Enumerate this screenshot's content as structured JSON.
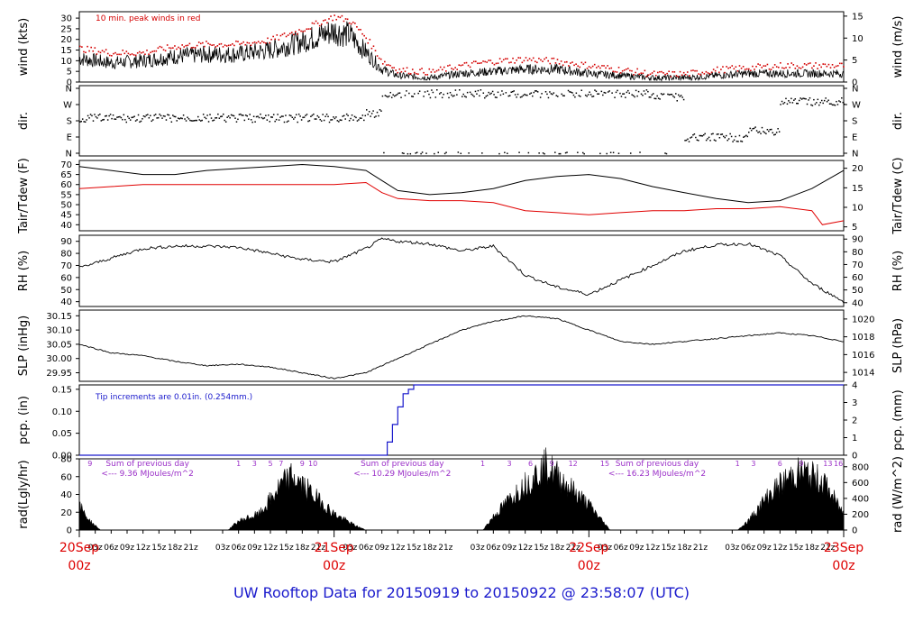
{
  "footer": {
    "title": "UW Rooftop Data for 20150919  to  20150922 @ 23:58:07  (UTC)"
  },
  "colors": {
    "peak": "#d40000",
    "dew": "#e00000",
    "pcp": "#1a1acc",
    "annot": "#9b30c8",
    "date": "#dd0000",
    "trace": "#000000",
    "title": "#1a1acc"
  },
  "chart_data": [
    {
      "panel": "wind",
      "type": "line",
      "ylabel_left": "wind (kts)",
      "ylabel_right": "wind (m/s)",
      "annotation": "10 min. peak winds in red",
      "yticks_left": [
        "0",
        "5",
        "10",
        "15",
        "20",
        "25",
        "30"
      ],
      "yticks_right": [
        "0",
        "5",
        "10",
        "15"
      ],
      "ylim": [
        0,
        33
      ],
      "series": [
        {
          "values": [
            [
              0,
              11
            ],
            [
              6,
              9
            ],
            [
              12,
              10
            ],
            [
              18,
              12
            ],
            [
              24,
              13
            ],
            [
              30,
              13
            ],
            [
              36,
              15
            ],
            [
              42,
              19
            ],
            [
              48,
              24
            ],
            [
              51,
              22
            ],
            [
              54,
              14
            ],
            [
              57,
              6
            ],
            [
              60,
              3
            ],
            [
              66,
              2
            ],
            [
              72,
              4
            ],
            [
              78,
              5
            ],
            [
              84,
              6
            ],
            [
              90,
              6
            ],
            [
              96,
              4
            ],
            [
              102,
              3
            ],
            [
              108,
              2
            ],
            [
              114,
              2
            ],
            [
              120,
              3
            ],
            [
              126,
              4
            ],
            [
              132,
              4
            ],
            [
              138,
              4
            ],
            [
              144,
              4
            ]
          ]
        },
        {
          "values": [
            [
              0,
              16
            ],
            [
              6,
              14
            ],
            [
              12,
              14
            ],
            [
              18,
              17
            ],
            [
              24,
              18
            ],
            [
              30,
              18
            ],
            [
              36,
              20
            ],
            [
              42,
              25
            ],
            [
              48,
              31
            ],
            [
              51,
              29
            ],
            [
              54,
              21
            ],
            [
              57,
              10
            ],
            [
              60,
              6
            ],
            [
              66,
              5
            ],
            [
              72,
              8
            ],
            [
              78,
              10
            ],
            [
              84,
              11
            ],
            [
              90,
              10
            ],
            [
              96,
              8
            ],
            [
              102,
              6
            ],
            [
              108,
              4
            ],
            [
              114,
              4
            ],
            [
              120,
              6
            ],
            [
              126,
              7
            ],
            [
              132,
              8
            ],
            [
              138,
              8
            ],
            [
              144,
              8
            ]
          ]
        }
      ]
    },
    {
      "panel": "dir",
      "type": "scatter",
      "ylabel_left": "dir.",
      "ylabel_right": "dir.",
      "yticks_left": [
        "N",
        "E",
        "S",
        "W",
        "N"
      ],
      "yticks_right": [
        "N",
        "E",
        "S",
        "W",
        "N"
      ],
      "series": [
        {
          "values": [
            [
              0,
              "S-SW"
            ],
            [
              54,
              "SW"
            ],
            [
              57,
              "N-NW"
            ],
            [
              108,
              "NW"
            ],
            [
              114,
              "E"
            ],
            [
              126,
              "E-SE"
            ],
            [
              132,
              "W-NW"
            ],
            [
              144,
              "W"
            ]
          ]
        }
      ]
    },
    {
      "panel": "temp",
      "type": "line",
      "ylabel_left": "Tair/Tdew (F)",
      "ylabel_right": "Tair/Tdew (C)",
      "yticks_left": [
        "40",
        "45",
        "50",
        "55",
        "60",
        "65",
        "70"
      ],
      "yticks_right": [
        "5",
        "10",
        "15",
        "20"
      ],
      "ylim": [
        37,
        72
      ],
      "series": [
        {
          "values": [
            [
              0,
              69
            ],
            [
              6,
              67
            ],
            [
              12,
              65
            ],
            [
              18,
              65
            ],
            [
              24,
              67
            ],
            [
              30,
              68
            ],
            [
              36,
              69
            ],
            [
              42,
              70
            ],
            [
              48,
              69
            ],
            [
              54,
              67
            ],
            [
              57,
              62
            ],
            [
              60,
              57
            ],
            [
              66,
              55
            ],
            [
              72,
              56
            ],
            [
              78,
              58
            ],
            [
              84,
              62
            ],
            [
              90,
              64
            ],
            [
              96,
              65
            ],
            [
              102,
              63
            ],
            [
              108,
              59
            ],
            [
              114,
              56
            ],
            [
              120,
              53
            ],
            [
              126,
              51
            ],
            [
              132,
              52
            ],
            [
              138,
              58
            ],
            [
              144,
              67
            ]
          ]
        },
        {
          "values": [
            [
              0,
              58
            ],
            [
              6,
              59
            ],
            [
              12,
              60
            ],
            [
              18,
              60
            ],
            [
              24,
              60
            ],
            [
              30,
              60
            ],
            [
              36,
              60
            ],
            [
              42,
              60
            ],
            [
              48,
              60
            ],
            [
              54,
              61
            ],
            [
              57,
              56
            ],
            [
              60,
              53
            ],
            [
              66,
              52
            ],
            [
              72,
              52
            ],
            [
              78,
              51
            ],
            [
              84,
              47
            ],
            [
              90,
              46
            ],
            [
              96,
              45
            ],
            [
              102,
              46
            ],
            [
              108,
              47
            ],
            [
              114,
              47
            ],
            [
              120,
              48
            ],
            [
              126,
              48
            ],
            [
              132,
              49
            ],
            [
              138,
              47
            ],
            [
              140,
              40
            ],
            [
              144,
              42
            ]
          ]
        }
      ]
    },
    {
      "panel": "rh",
      "type": "line",
      "ylabel_left": "RH (%)",
      "ylabel_right": "RH (%)",
      "yticks_left": [
        "40",
        "50",
        "60",
        "70",
        "80",
        "90"
      ],
      "yticks_right": [
        "40",
        "50",
        "60",
        "70",
        "80",
        "90"
      ],
      "ylim": [
        36,
        95
      ],
      "series": [
        {
          "values": [
            [
              0,
              68
            ],
            [
              6,
              76
            ],
            [
              12,
              84
            ],
            [
              18,
              86
            ],
            [
              24,
              86
            ],
            [
              30,
              85
            ],
            [
              36,
              80
            ],
            [
              42,
              75
            ],
            [
              48,
              73
            ],
            [
              54,
              84
            ],
            [
              57,
              92
            ],
            [
              60,
              90
            ],
            [
              66,
              88
            ],
            [
              72,
              82
            ],
            [
              78,
              86
            ],
            [
              84,
              62
            ],
            [
              90,
              52
            ],
            [
              96,
              46
            ],
            [
              102,
              58
            ],
            [
              108,
              70
            ],
            [
              114,
              82
            ],
            [
              120,
              87
            ],
            [
              126,
              88
            ],
            [
              132,
              78
            ],
            [
              138,
              55
            ],
            [
              144,
              40
            ]
          ]
        }
      ]
    },
    {
      "panel": "slp",
      "type": "line",
      "ylabel_left": "SLP (inHg)",
      "ylabel_right": "SLP (hPa)",
      "yticks_left": [
        "29.95",
        "30.00",
        "30.05",
        "30.10",
        "30.15"
      ],
      "yticks_right": [
        "1014",
        "1016",
        "1018",
        "1020"
      ],
      "ylim": [
        29.92,
        30.17
      ],
      "series": [
        {
          "values": [
            [
              0,
              30.05
            ],
            [
              6,
              30.02
            ],
            [
              12,
              30.01
            ],
            [
              18,
              29.99
            ],
            [
              24,
              29.975
            ],
            [
              30,
              29.98
            ],
            [
              36,
              29.97
            ],
            [
              42,
              29.95
            ],
            [
              48,
              29.93
            ],
            [
              54,
              29.95
            ],
            [
              60,
              30.0
            ],
            [
              66,
              30.05
            ],
            [
              72,
              30.1
            ],
            [
              78,
              30.13
            ],
            [
              84,
              30.15
            ],
            [
              90,
              30.14
            ],
            [
              96,
              30.1
            ],
            [
              102,
              30.06
            ],
            [
              108,
              30.05
            ],
            [
              114,
              30.06
            ],
            [
              120,
              30.07
            ],
            [
              126,
              30.08
            ],
            [
              132,
              30.09
            ],
            [
              138,
              30.08
            ],
            [
              144,
              30.06
            ]
          ]
        }
      ]
    },
    {
      "panel": "pcp",
      "type": "line",
      "ylabel_left": "pcp. (in)",
      "ylabel_right": "pcp. (mm)",
      "annotation": "Tip increments are 0.01in. (0.254mm.)",
      "yticks_left": [
        "0.00",
        "0.05",
        "0.10",
        "0.15"
      ],
      "yticks_right": [
        "0",
        "1",
        "2",
        "3",
        "4"
      ],
      "ylim": [
        0,
        0.16
      ],
      "series": [
        {
          "values": [
            [
              0,
              0
            ],
            [
              57,
              0
            ],
            [
              58,
              0.03
            ],
            [
              59,
              0.07
            ],
            [
              60,
              0.11
            ],
            [
              61,
              0.14
            ],
            [
              62,
              0.15
            ],
            [
              63,
              0.16
            ],
            [
              144,
              0.16
            ]
          ]
        }
      ]
    },
    {
      "panel": "rad",
      "type": "area",
      "ylabel_left": "rad(Lgly/hr)",
      "ylabel_right": "rad (W/m^2)",
      "yticks_left": [
        "0",
        "20",
        "40",
        "60",
        "80"
      ],
      "yticks_right": [
        "0",
        "200",
        "400",
        "600",
        "800"
      ],
      "ylim": [
        0,
        80
      ],
      "daylabels": [
        "Sum of previous day\n<--- 9.36 MJoules/m^2",
        "Sum of previous day\n<--- 10.29 MJoules/m^2",
        "Sum of previous day\n<--- 16.23 MJoules/m^2"
      ],
      "hourlabels": [
        "9",
        "1",
        "3",
        "5",
        "7",
        "9",
        "10",
        "1",
        "3",
        "6",
        "9",
        "12",
        "15",
        "1",
        "3",
        "6",
        "9",
        "13",
        "16"
      ],
      "xticks": [
        "03z",
        "06z",
        "09z",
        "12z",
        "15z",
        "18z",
        "21z",
        "03z",
        "06z",
        "09z",
        "12z",
        "15z",
        "18z",
        "21z",
        "03z",
        "06z",
        "09z",
        "12z",
        "15z",
        "18z",
        "21z"
      ],
      "dates": [
        {
          "date": "20Sep",
          "time": "00z"
        },
        {
          "date": "21Sep",
          "time": "00z"
        },
        {
          "date": "22Sep",
          "time": "00z"
        },
        {
          "date": "23Sep",
          "time": "00z"
        }
      ],
      "series": [
        {
          "values": [
            [
              0,
              27
            ],
            [
              2,
              10
            ],
            [
              4,
              0
            ],
            [
              28,
              0
            ],
            [
              30,
              10
            ],
            [
              34,
              18
            ],
            [
              38,
              50
            ],
            [
              40,
              60
            ],
            [
              44,
              40
            ],
            [
              48,
              18
            ],
            [
              52,
              5
            ],
            [
              54,
              0
            ],
            [
              76,
              0
            ],
            [
              78,
              15
            ],
            [
              82,
              40
            ],
            [
              86,
              62
            ],
            [
              88,
              72
            ],
            [
              92,
              50
            ],
            [
              96,
              28
            ],
            [
              100,
              0
            ],
            [
              124,
              0
            ],
            [
              126,
              10
            ],
            [
              130,
              40
            ],
            [
              134,
              60
            ],
            [
              136,
              65
            ],
            [
              140,
              55
            ],
            [
              144,
              18
            ]
          ]
        }
      ]
    }
  ]
}
